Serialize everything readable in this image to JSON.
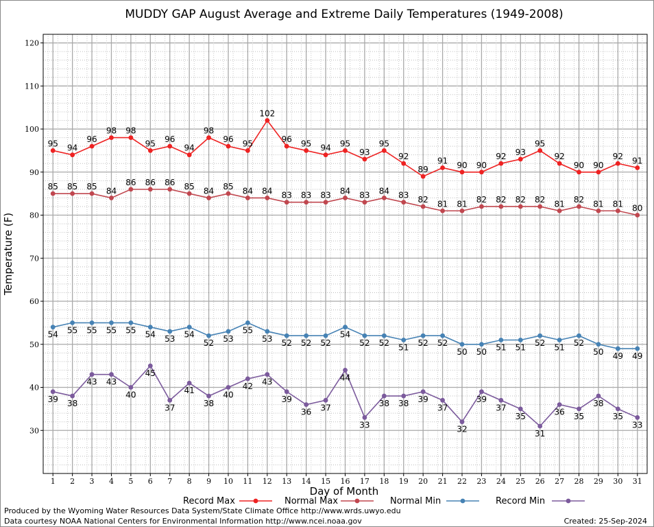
{
  "chart_data": {
    "type": "line",
    "title": "MUDDY GAP August Average and Extreme Daily Temperatures (1949-2008)",
    "xlabel": "Day of Month",
    "ylabel": "Temperature (F)",
    "xlim": [
      0.5,
      31.5
    ],
    "ylim": [
      20,
      122
    ],
    "yticks": [
      30,
      40,
      50,
      60,
      70,
      80,
      90,
      100,
      110,
      120
    ],
    "x": [
      1,
      2,
      3,
      4,
      5,
      6,
      7,
      8,
      9,
      10,
      11,
      12,
      13,
      14,
      15,
      16,
      17,
      18,
      19,
      20,
      21,
      22,
      23,
      24,
      25,
      26,
      27,
      28,
      29,
      30,
      31
    ],
    "grid": true,
    "legend_position": "bottom",
    "series": [
      {
        "name": "Record Max",
        "color": "#ee2222",
        "label_pos": "above",
        "values": [
          95,
          94,
          96,
          98,
          98,
          95,
          96,
          94,
          98,
          96,
          95,
          102,
          96,
          95,
          94,
          95,
          93,
          95,
          92,
          89,
          91,
          90,
          90,
          92,
          93,
          95,
          92,
          90,
          90,
          92,
          91
        ]
      },
      {
        "name": "Normal Max",
        "color": "#c0474f",
        "label_pos": "above",
        "values": [
          85,
          85,
          85,
          84,
          86,
          86,
          86,
          85,
          84,
          85,
          84,
          84,
          83,
          83,
          83,
          84,
          83,
          84,
          83,
          82,
          81,
          81,
          82,
          82,
          82,
          82,
          81,
          82,
          81,
          81,
          80
        ]
      },
      {
        "name": "Normal Min",
        "color": "#4682b4",
        "label_pos": "below",
        "values": [
          54,
          55,
          55,
          55,
          55,
          54,
          53,
          54,
          52,
          53,
          55,
          53,
          52,
          52,
          52,
          54,
          52,
          52,
          51,
          52,
          52,
          50,
          50,
          51,
          51,
          52,
          51,
          52,
          50,
          49,
          49
        ]
      },
      {
        "name": "Record Min",
        "color": "#7b5a9c",
        "label_pos": "below",
        "values": [
          39,
          38,
          43,
          43,
          40,
          45,
          37,
          41,
          38,
          40,
          42,
          43,
          39,
          36,
          37,
          44,
          33,
          38,
          38,
          39,
          37,
          32,
          39,
          37,
          35,
          31,
          36,
          35,
          38,
          35,
          33
        ]
      }
    ]
  },
  "footer": {
    "produced_by": "Produced by the Wyoming Water Resources Data System/State Climate Office http://www.wrds.uwyo.edu",
    "courtesy": "Data courtesy NOAA National Centers for Environmental Information http://www.ncei.noaa.gov",
    "created": "Created:  25-Sep-2024"
  }
}
